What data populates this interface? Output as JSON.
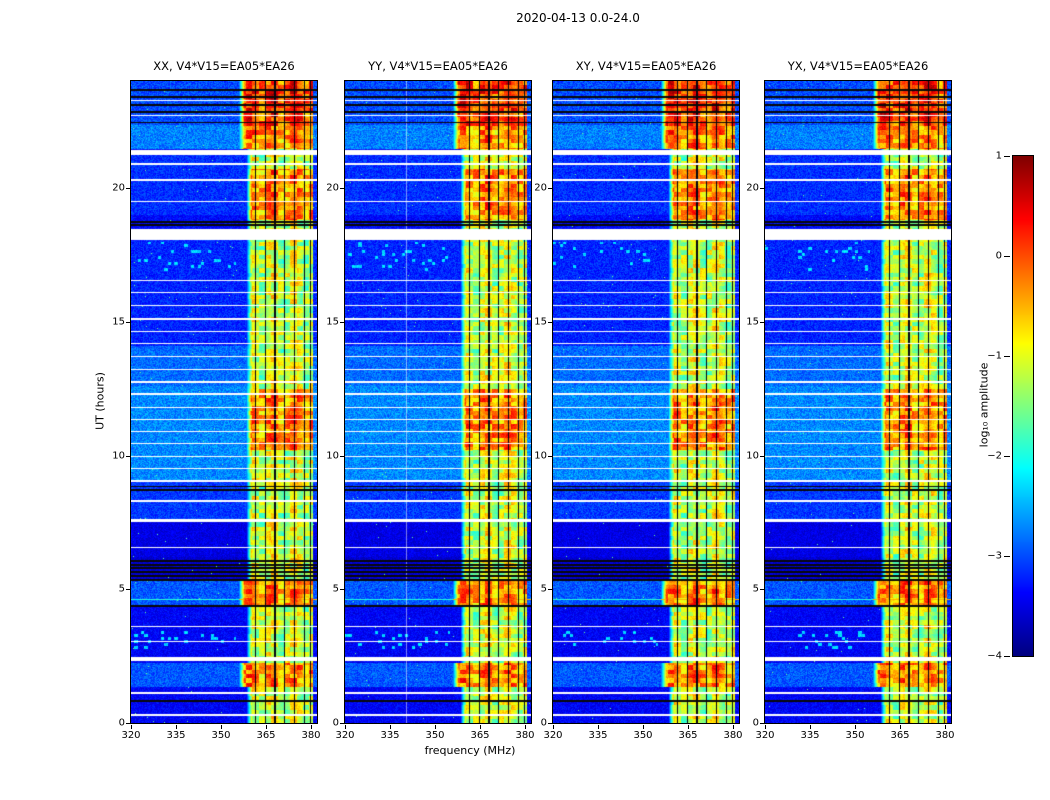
{
  "chart_data": {
    "type": "heatmap",
    "suptitle": "2020-04-13 0.0-24.0",
    "xlabel": "frequency (MHz)",
    "ylabel": "UT (hours)",
    "xlim": [
      320,
      382
    ],
    "ylim": [
      0,
      24
    ],
    "xticks": [
      320,
      335,
      350,
      365,
      380
    ],
    "yticks": [
      0,
      5,
      10,
      15,
      20
    ],
    "grid": false,
    "panels": [
      {
        "polarization": "XX",
        "title": "XX, V4*V15=EA05*EA26"
      },
      {
        "polarization": "YY",
        "title": "YY, V4*V15=EA05*EA26",
        "pale_column_mhz": [
          340.5
        ]
      },
      {
        "polarization": "XY",
        "title": "XY, V4*V15=EA05*EA26"
      },
      {
        "polarization": "YX",
        "title": "YX, V4*V15=EA05*EA26"
      }
    ],
    "colorbar": {
      "label": "log₁₀ amplitude",
      "min": -4,
      "max": 1,
      "colormap": "jet",
      "position": "right",
      "ticks": [
        {
          "label": "1",
          "value": 1
        },
        {
          "label": "0",
          "value": 0
        },
        {
          "label": "−1",
          "value": -1
        },
        {
          "label": "−2",
          "value": -2
        },
        {
          "label": "−3",
          "value": -3
        },
        {
          "label": "−4",
          "value": -4
        }
      ]
    },
    "features": {
      "description": "Dynamic spectra: blue noise background near -3.3, persistent RFI band ~358-380 MHz, horizontal white data gaps, flagged black rows, dark flagged channels inside RFI band.",
      "rfi_band_mhz": [
        358.5,
        380.6
      ],
      "rfi_band_extended_mhz": [
        356.0,
        380.6
      ],
      "rfi_levels": {
        "quiet": -1.15,
        "strong": -0.3,
        "extreme": 0.05
      },
      "rfi_dark_lines_mhz": [
        361.5,
        364.8,
        368.0,
        371.3,
        374.5,
        377.7,
        379.9
      ],
      "strong_rfi_hours": [
        [
          1.35,
          2.25
        ],
        [
          4.35,
          5.3
        ],
        [
          10.2,
          12.5
        ],
        [
          18.8,
          20.7
        ],
        [
          21.45,
          22.35
        ],
        [
          22.3,
          24.0
        ]
      ],
      "extreme_hours": [
        [
          22.3,
          24.0
        ]
      ],
      "rfi_extended_hours": [
        [
          1.35,
          2.25
        ],
        [
          4.35,
          5.3
        ],
        [
          21.45,
          22.35
        ],
        [
          22.3,
          24.0
        ]
      ],
      "white_gap_hours": [
        [
          2.3,
          2.45
        ],
        [
          7.5,
          7.62
        ],
        [
          18.05,
          18.45
        ],
        [
          21.25,
          21.42
        ]
      ],
      "white_line_hours": [
        0.3,
        1.12,
        3.05,
        3.6,
        6.55,
        8.3,
        9.05,
        9.5,
        9.95,
        10.45,
        10.9,
        11.35,
        11.8,
        12.3,
        12.75,
        13.2,
        13.7,
        14.2,
        14.65,
        15.1,
        15.6,
        16.1,
        16.55,
        19.5,
        20.3,
        20.9,
        22.7,
        23.28
      ],
      "black_line_hours": [
        0.82,
        4.38,
        5.35,
        5.5,
        5.64,
        5.78,
        5.92,
        6.06,
        8.72,
        8.84,
        18.62,
        18.74,
        22.45,
        22.85,
        23.1,
        23.4,
        23.66
      ],
      "bright_line_hours": [
        4.62
      ],
      "speckle_hours": [
        [
          2.75,
          3.45
        ],
        [
          16.9,
          18.0
        ]
      ],
      "background_bands": [
        {
          "hours": [
            0,
            1.35
          ],
          "level": -3.4,
          "sigma": 0.22
        },
        {
          "hours": [
            1.35,
            2.25
          ],
          "level": -2.95,
          "sigma": 0.28
        },
        {
          "hours": [
            2.25,
            4.35
          ],
          "level": -3.4,
          "sigma": 0.22
        },
        {
          "hours": [
            4.35,
            5.3
          ],
          "level": -2.95,
          "sigma": 0.28
        },
        {
          "hours": [
            5.3,
            6.2
          ],
          "level": -3.6,
          "sigma": 0.18
        },
        {
          "hours": [
            6.2,
            7.6
          ],
          "level": -3.5,
          "sigma": 0.2
        },
        {
          "hours": [
            7.6,
            9.0
          ],
          "level": -3.1,
          "sigma": 0.25
        },
        {
          "hours": [
            9.0,
            12.6
          ],
          "level": -2.7,
          "sigma": 0.3
        },
        {
          "hours": [
            12.6,
            14.1
          ],
          "level": -2.85,
          "sigma": 0.28
        },
        {
          "hours": [
            14.1,
            18.05
          ],
          "level": -3.2,
          "sigma": 0.25
        },
        {
          "hours": [
            18.45,
            19.0
          ],
          "level": -3.35,
          "sigma": 0.22
        },
        {
          "hours": [
            19.0,
            21.25
          ],
          "level": -3.15,
          "sigma": 0.25
        },
        {
          "hours": [
            21.45,
            22.35
          ],
          "level": -2.75,
          "sigma": 0.3
        },
        {
          "hours": [
            22.35,
            24.0
          ],
          "level": -3.0,
          "sigma": 0.3
        }
      ]
    }
  }
}
